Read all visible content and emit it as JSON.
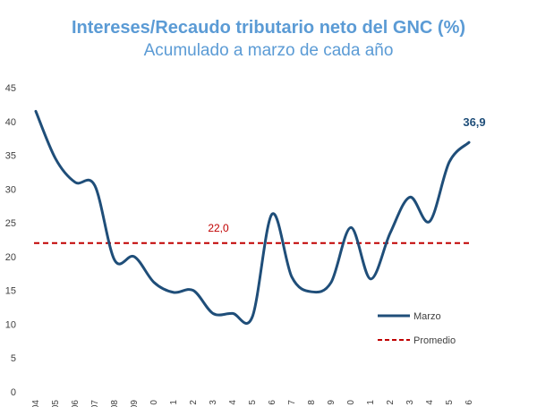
{
  "chart_data": {
    "type": "line",
    "title": "Intereses/Recaudo tributario neto del GNC (%)",
    "subtitle": "Acumulado a marzo de cada año",
    "xlabel": "",
    "ylabel": "",
    "ylim": [
      0,
      45
    ],
    "y_ticks": [
      "0",
      "5",
      "10",
      "15",
      "20",
      "25",
      "30",
      "35",
      "40",
      "45"
    ],
    "x": [
      "04",
      "05",
      "06",
      "07",
      "08",
      "09",
      "10",
      "11",
      "12",
      "13",
      "14",
      "15",
      "16",
      "17",
      "18",
      "19",
      "20",
      "21",
      "22",
      "23",
      "24",
      "25",
      "26"
    ],
    "x_tick_labels": [
      "04",
      "05",
      "06",
      "07",
      "08",
      "09",
      "0",
      "1",
      "2",
      "3",
      "4",
      "5",
      "6",
      "7",
      "8",
      "9",
      "0",
      "1",
      "2",
      "3",
      "4",
      "5",
      "6"
    ],
    "series": [
      {
        "name": "Marzo",
        "color": "#1f4e79",
        "values": [
          41.5,
          34.5,
          31.0,
          30.5,
          19.5,
          20.0,
          16.2,
          14.7,
          15.0,
          11.6,
          11.6,
          11.1,
          26.3,
          17.0,
          14.8,
          16.2,
          24.3,
          16.7,
          23.5,
          28.8,
          25.2,
          34.0,
          36.9
        ]
      },
      {
        "name": "Promedio",
        "color": "#c00000",
        "values": [
          22.0,
          22.0,
          22.0,
          22.0,
          22.0,
          22.0,
          22.0,
          22.0,
          22.0,
          22.0,
          22.0,
          22.0,
          22.0,
          22.0,
          22.0,
          22.0,
          22.0,
          22.0,
          22.0,
          22.0,
          22.0,
          22.0,
          22.0
        ]
      }
    ],
    "annotations": {
      "promedio_label": "22,0",
      "last_value_label": "36,9"
    },
    "legend": {
      "placement": "right",
      "items": [
        "Marzo",
        "Promedio"
      ]
    },
    "grid": false
  }
}
